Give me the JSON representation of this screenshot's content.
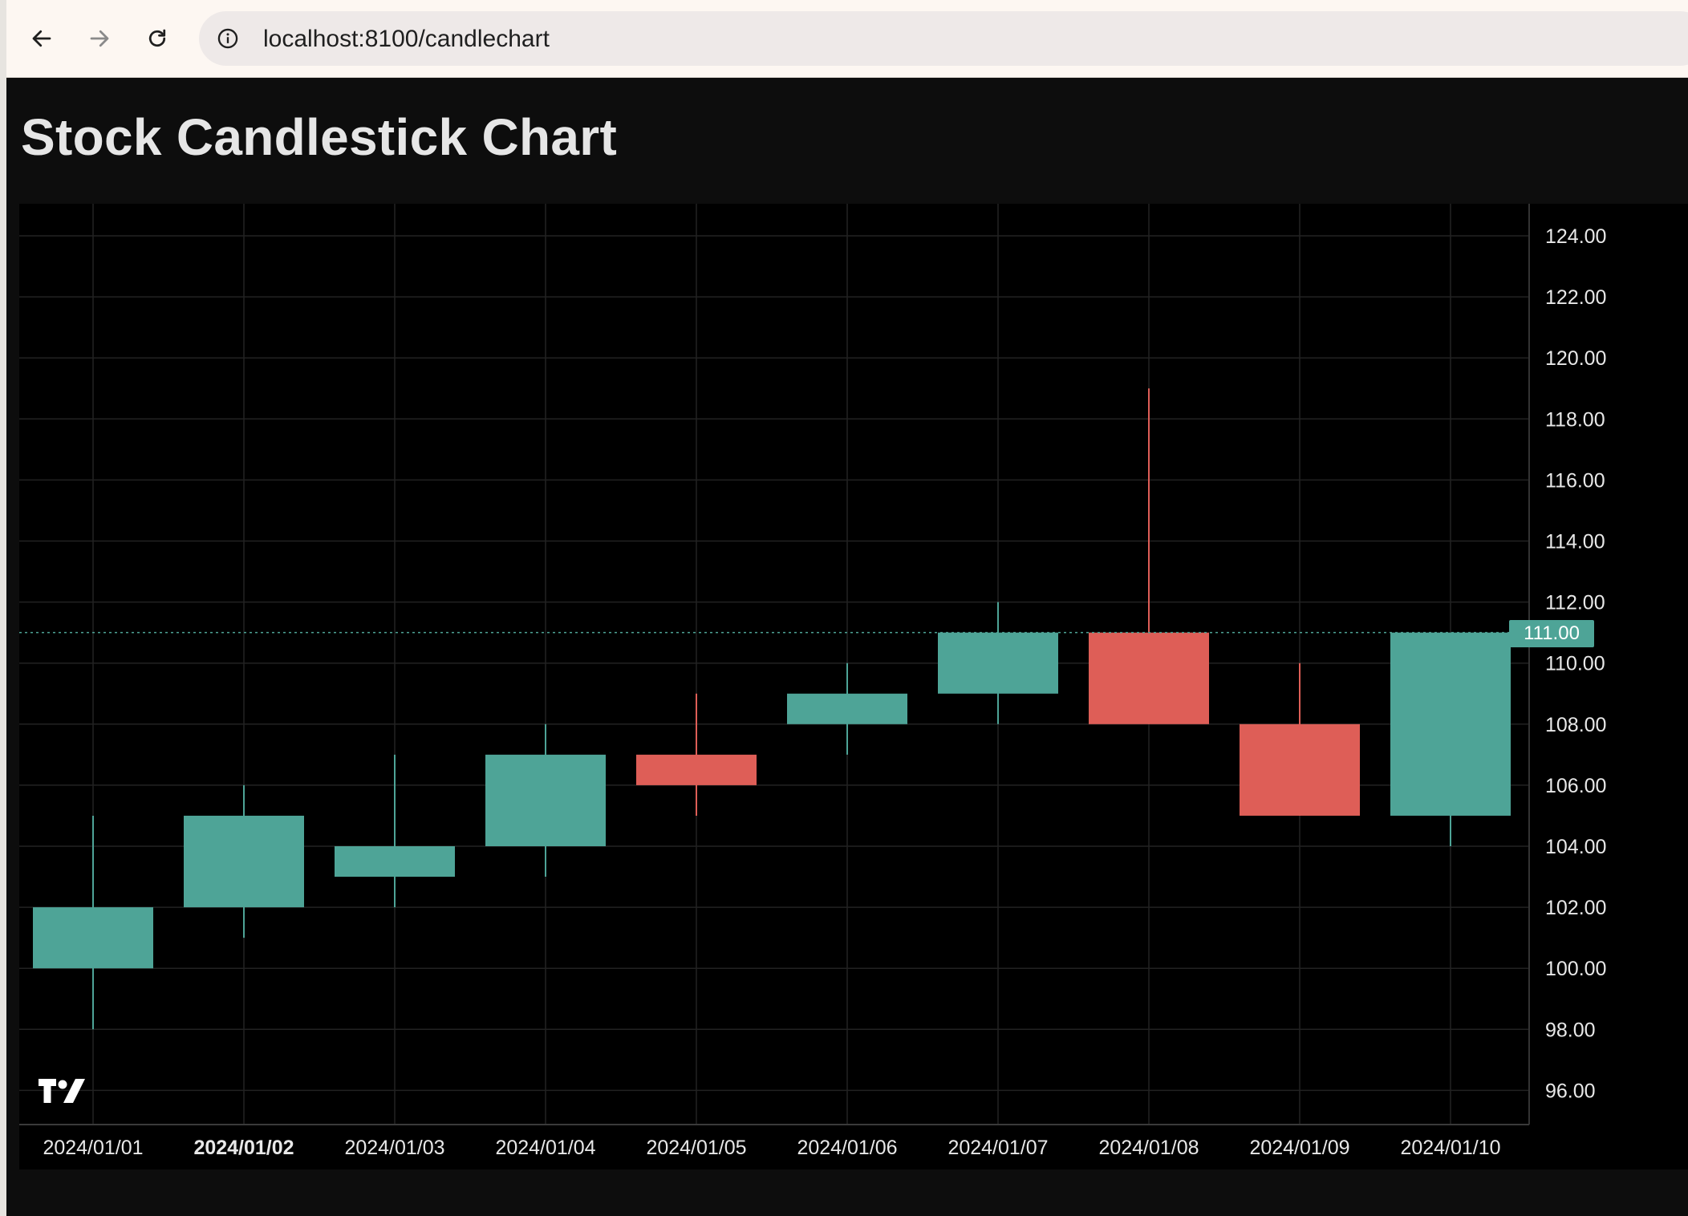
{
  "browser": {
    "url": "localhost:8100/candlechart"
  },
  "page": {
    "title": "Stock Candlestick Chart"
  },
  "colors": {
    "up": "#4ea497",
    "down": "#de5e57",
    "background": "#000000",
    "grid": "#222222",
    "axis_text": "#e8e8e8"
  },
  "icons": {
    "back": "back-arrow-icon",
    "forward": "forward-arrow-icon",
    "reload": "reload-icon",
    "site_info": "info-circle-icon",
    "brand": "tradingview-logo-icon"
  },
  "chart_data": {
    "type": "candlestick",
    "title": "Stock Candlestick Chart",
    "categories": [
      "2024/01/01",
      "2024/01/02",
      "2024/01/03",
      "2024/01/04",
      "2024/01/05",
      "2024/01/06",
      "2024/01/07",
      "2024/01/08",
      "2024/01/09",
      "2024/01/10"
    ],
    "highlighted_category": "2024/01/02",
    "open": [
      100,
      102,
      103,
      104,
      107,
      108,
      109,
      111,
      108,
      105
    ],
    "high": [
      105,
      106,
      107,
      108,
      109,
      110,
      112,
      119,
      110,
      111
    ],
    "low": [
      98,
      101,
      102,
      103,
      105,
      107,
      108,
      108,
      105,
      104
    ],
    "close": [
      102,
      105,
      104,
      107,
      106,
      109,
      111,
      108,
      105,
      111
    ],
    "yticks": [
      "124.00",
      "122.00",
      "120.00",
      "118.00",
      "116.00",
      "114.00",
      "112.00",
      "110.00",
      "108.00",
      "106.00",
      "104.00",
      "102.00",
      "100.00",
      "98.00",
      "96.00"
    ],
    "last_price": 111,
    "last_price_label": "111.00",
    "grid": true
  }
}
